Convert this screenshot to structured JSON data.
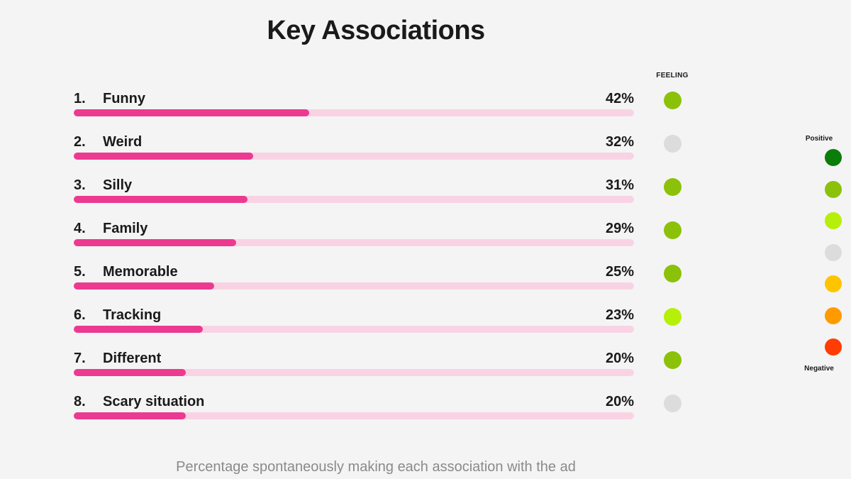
{
  "chart_data": {
    "type": "bar",
    "orientation": "horizontal",
    "title": "Key Associations",
    "feeling_header": "FEELING",
    "caption": "Percentage spontaneously making each association with the ad",
    "xlim": [
      0,
      100
    ],
    "ranks": [
      "1.",
      "2.",
      "3.",
      "4.",
      "5.",
      "6.",
      "7.",
      "8."
    ],
    "categories": [
      "Funny",
      "Weird",
      "Silly",
      "Family",
      "Memorable",
      "Tracking",
      "Different",
      "Scary situation"
    ],
    "values": [
      42,
      32,
      31,
      29,
      25,
      23,
      20,
      20
    ],
    "value_labels": [
      "42%",
      "32%",
      "31%",
      "29%",
      "25%",
      "23%",
      "20%",
      "20%"
    ],
    "feeling_colors": [
      "#8cc10a",
      "#dcdcdc",
      "#8cc10a",
      "#8cc10a",
      "#8cc10a",
      "#b6ef0a",
      "#8cc10a",
      "#dcdcdc"
    ],
    "legend": {
      "top_label": "Positive",
      "bottom_label": "Negative",
      "scale_colors": [
        "#0a7d0a",
        "#8cc10a",
        "#b6ef0a",
        "#dcdcdc",
        "#ffc400",
        "#ff9a00",
        "#ff3d00"
      ]
    }
  },
  "colors": {
    "bar_fill": "#ec3a90",
    "bar_track": "#f9d3e4"
  }
}
